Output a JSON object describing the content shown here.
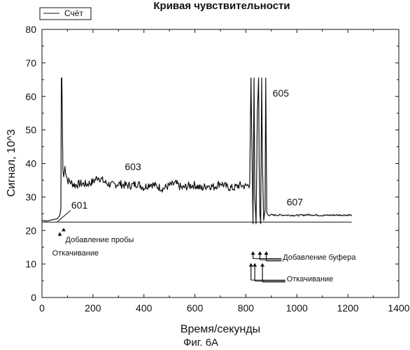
{
  "chart_data": {
    "type": "line",
    "title": "Кривая чувствительности",
    "xlabel": "Время/секунды",
    "ylabel": "Сигнал, 10^3",
    "caption": "Фиг. 6A",
    "xlim": [
      0,
      1400
    ],
    "ylim": [
      0,
      80
    ],
    "xticks": [
      0,
      200,
      400,
      600,
      800,
      1000,
      1200,
      1400
    ],
    "yticks": [
      0,
      10,
      20,
      30,
      40,
      50,
      60,
      70,
      80
    ],
    "grid": false,
    "legend_position": "top-left",
    "series": [
      {
        "name": "Счёт",
        "color": "#111111",
        "x": [
          0,
          20,
          40,
          60,
          70,
          74,
          76,
          78,
          82,
          85,
          90,
          100,
          110,
          130,
          150,
          175,
          200,
          220,
          250,
          275,
          300,
          325,
          350,
          375,
          400,
          425,
          450,
          475,
          500,
          525,
          550,
          575,
          600,
          625,
          650,
          675,
          700,
          725,
          750,
          775,
          800,
          815,
          820,
          825,
          828,
          832,
          835,
          840,
          845,
          850,
          852,
          855,
          858,
          862,
          865,
          870,
          875,
          878,
          882,
          885,
          890,
          900,
          950,
          1000,
          1050,
          1100,
          1150,
          1200,
          1215
        ],
        "y": [
          23,
          22.8,
          23.2,
          23.5,
          24.5,
          26.5,
          65.5,
          65.5,
          38,
          36,
          39,
          35,
          34.5,
          33.5,
          34,
          33.8,
          34.5,
          36,
          34.2,
          33.5,
          34,
          33.5,
          33.4,
          34,
          32.8,
          34,
          33.2,
          32.5,
          33.4,
          34,
          32.6,
          33.3,
          33.6,
          32.5,
          33.5,
          33,
          34.2,
          33,
          32.6,
          33.5,
          33.2,
          33.8,
          65.5,
          38,
          22,
          65.5,
          30,
          22,
          55,
          65.5,
          40,
          25,
          22,
          65.5,
          40,
          23,
          26,
          65.5,
          25.5,
          24.8,
          24.5,
          24.6,
          24.6,
          24.5,
          24.7,
          24.5,
          24.6,
          24.6,
          24.6
        ]
      }
    ],
    "baseline": {
      "y": 22.5,
      "x": [
        0,
        1215
      ]
    },
    "annotations": [
      {
        "text": "601",
        "x": 115,
        "y": 26.5
      },
      {
        "text": "603",
        "x": 325,
        "y": 38
      },
      {
        "text": "605",
        "x": 905,
        "y": 60
      },
      {
        "text": "607",
        "x": 960,
        "y": 27.5
      },
      {
        "text": "Добавление пробы",
        "x": 92,
        "y": 16.5
      },
      {
        "text": "Откачивание",
        "x": 40,
        "y": 12.5
      },
      {
        "text": "Добавление буфера",
        "x": 945,
        "y": 11.3
      },
      {
        "text": "Откачивание",
        "x": 960,
        "y": 4.8
      }
    ],
    "arrows": [
      {
        "x": 70,
        "y_from": 18.3,
        "y_to": 19.5
      },
      {
        "x": 85,
        "y_from": 19.8,
        "y_to": 20.8
      }
    ],
    "buffer_arrows": [
      {
        "x": 828
      },
      {
        "x": 855
      },
      {
        "x": 880
      }
    ],
    "pump_arrows": [
      {
        "x": 820
      },
      {
        "x": 835
      },
      {
        "x": 865
      }
    ]
  }
}
